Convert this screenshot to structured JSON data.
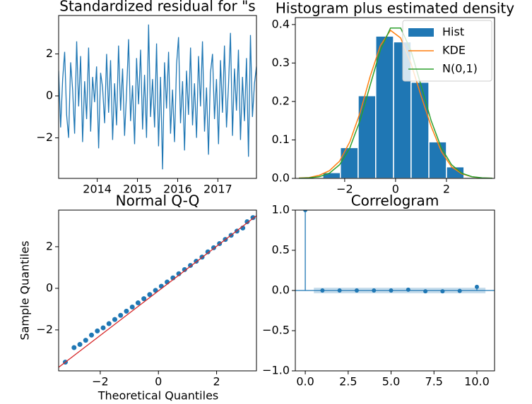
{
  "chart_data": [
    {
      "type": "line",
      "title": "Standardized residual for \"s",
      "color": "#1f77b4",
      "values": [
        1.2,
        -1.5,
        0.8,
        2.1,
        -0.9,
        -2.0,
        1.6,
        0.3,
        -1.8,
        2.6,
        -0.5,
        1.9,
        -2.2,
        0.7,
        -1.1,
        2.3,
        -1.7,
        0.9,
        -0.3,
        1.4,
        -2.5,
        1.1,
        0.4,
        -1.3,
        2.0,
        -0.8,
        1.7,
        -2.1,
        0.6,
        -1.4,
        2.4,
        -0.7,
        1.3,
        -1.9,
        0.2,
        2.7,
        -1.2,
        0.5,
        -2.3,
        1.8,
        -0.4,
        2.2,
        -1.6,
        1.0,
        -2.0,
        3.4,
        -1.0,
        0.8,
        -1.5,
        2.5,
        -2.4,
        0.9,
        -3.5,
        1.6,
        -0.6,
        2.1,
        -1.8,
        0.3,
        -2.2,
        1.5,
        2.8,
        -1.3,
        0.7,
        -2.6,
        1.2,
        -0.9,
        2.3,
        -1.4,
        0.6,
        -2.0,
        1.9,
        -0.5,
        2.6,
        -1.7,
        0.4,
        -2.8,
        1.1,
        2.0,
        -1.1,
        0.8,
        -2.3,
        1.7,
        -0.8,
        2.4,
        -1.5,
        0.5,
        3.0,
        -1.9,
        1.3,
        -0.7,
        2.2,
        -2.1,
        0.9,
        -1.2,
        1.8,
        -2.9,
        2.9,
        -1.0,
        0.6,
        1.4
      ],
      "xlim": [
        2013.04,
        2017.96
      ],
      "xticks": [
        2014,
        2015,
        2016,
        2017
      ],
      "ylim": [
        -3.93,
        3.83
      ],
      "yticks": [
        {
          "value": -2,
          "label": "−2"
        },
        0,
        2
      ]
    },
    {
      "type": "histogram",
      "title": "Histogram plus estimated density",
      "name": "Hist",
      "color": "#1f77b4",
      "bins": [
        -2.86,
        -2.17,
        -1.47,
        -0.78,
        -0.08,
        0.61,
        1.31,
        2.0,
        2.69,
        3.39
      ],
      "values": [
        0.015,
        0.08,
        0.215,
        0.37,
        0.355,
        0.25,
        0.095,
        0.03,
        0.003
      ],
      "series": [
        {
          "name": "KDE",
          "color": "#ff7f0e",
          "x": [
            -3.8,
            -3.4,
            -3.0,
            -2.6,
            -2.2,
            -1.8,
            -1.4,
            -1.0,
            -0.6,
            -0.2,
            0.2,
            0.6,
            1.0,
            1.4,
            1.8,
            2.2,
            2.6,
            3.0,
            3.4,
            3.8
          ],
          "values": [
            0.001,
            0.002,
            0.008,
            0.02,
            0.045,
            0.095,
            0.17,
            0.265,
            0.345,
            0.385,
            0.365,
            0.3,
            0.215,
            0.135,
            0.07,
            0.03,
            0.012,
            0.004,
            0.001,
            0.0003
          ]
        },
        {
          "name": "N(0,1)",
          "color": "#2ca02c",
          "x": [
            -3.8,
            -3.4,
            -3.0,
            -2.6,
            -2.2,
            -1.8,
            -1.4,
            -1.0,
            -0.6,
            -0.2,
            0.2,
            0.6,
            1.0,
            1.4,
            1.8,
            2.2,
            2.6,
            3.0,
            3.4,
            3.8
          ],
          "values": [
            0.0003,
            0.0012,
            0.0044,
            0.0136,
            0.0355,
            0.079,
            0.1497,
            0.242,
            0.3332,
            0.391,
            0.391,
            0.3332,
            0.242,
            0.1497,
            0.079,
            0.0355,
            0.0136,
            0.0044,
            0.0012,
            0.0003
          ]
        }
      ],
      "legend": "upper right",
      "xlim": [
        -3.94,
        3.89
      ],
      "xticks": [
        {
          "value": -2,
          "label": "−2"
        },
        0,
        2
      ],
      "ylim": [
        0,
        0.418
      ],
      "yticks": [
        {
          "value": 0,
          "label": "0.0"
        },
        0.1,
        0.2,
        0.3,
        0.4
      ]
    },
    {
      "type": "scatter",
      "title": "Normal Q-Q",
      "x_label": "Theoretical Quantiles",
      "y_label": "Sample Quantiles",
      "color": "#1f77b4",
      "x": [
        -3.2,
        -2.9,
        -2.7,
        -2.5,
        -2.3,
        -2.1,
        -1.9,
        -1.7,
        -1.5,
        -1.3,
        -1.1,
        -0.9,
        -0.7,
        -0.5,
        -0.3,
        -0.1,
        0.1,
        0.3,
        0.5,
        0.7,
        0.9,
        1.1,
        1.3,
        1.5,
        1.7,
        1.9,
        2.1,
        2.3,
        2.5,
        2.7,
        2.9,
        3.05,
        3.25
      ],
      "values": [
        -3.55,
        -2.85,
        -2.7,
        -2.5,
        -2.25,
        -2.05,
        -1.9,
        -1.7,
        -1.5,
        -1.3,
        -1.1,
        -0.9,
        -0.7,
        -0.5,
        -0.3,
        -0.1,
        0.1,
        0.3,
        0.5,
        0.7,
        0.9,
        1.1,
        1.3,
        1.5,
        1.75,
        1.95,
        2.15,
        2.35,
        2.55,
        2.75,
        2.9,
        3.2,
        3.4
      ],
      "line": {
        "color": "#d62728",
        "x": [
          -3.43,
          3.37
        ],
        "values": [
          -3.8,
          3.49
        ]
      },
      "xlim": [
        -3.43,
        3.37
      ],
      "xticks": [
        {
          "value": -2,
          "label": "−2"
        },
        0,
        2
      ],
      "ylim": [
        -3.97,
        3.76
      ],
      "yticks": [
        {
          "value": -2,
          "label": "−2"
        },
        0,
        2
      ]
    },
    {
      "type": "stem",
      "title": "Correlogram",
      "color": "#1f77b4",
      "x": [
        0,
        1,
        2,
        3,
        4,
        5,
        6,
        7,
        8,
        9,
        10
      ],
      "values": [
        1.0,
        0.0,
        0.0,
        0.0,
        0.0,
        0.0,
        0.01,
        -0.01,
        -0.01,
        -0.005,
        0.045
      ],
      "confint": {
        "x": [
          0.5,
          10.5
        ],
        "lower": -0.035,
        "upper": 0.035
      },
      "xlim": [
        -0.58,
        11.03
      ],
      "xticks": [
        {
          "value": 0,
          "label": "0.0"
        },
        2.5,
        {
          "value": 5,
          "label": "5.0"
        },
        7.5,
        {
          "value": 10,
          "label": "10.0"
        }
      ],
      "ylim": [
        -1,
        1
      ],
      "yticks": [
        {
          "value": -1,
          "label": "−1.0"
        },
        {
          "value": -0.5,
          "label": "−0.5"
        },
        {
          "value": 0,
          "label": "0.0"
        },
        0.5,
        {
          "value": 1,
          "label": "1.0"
        }
      ]
    }
  ]
}
